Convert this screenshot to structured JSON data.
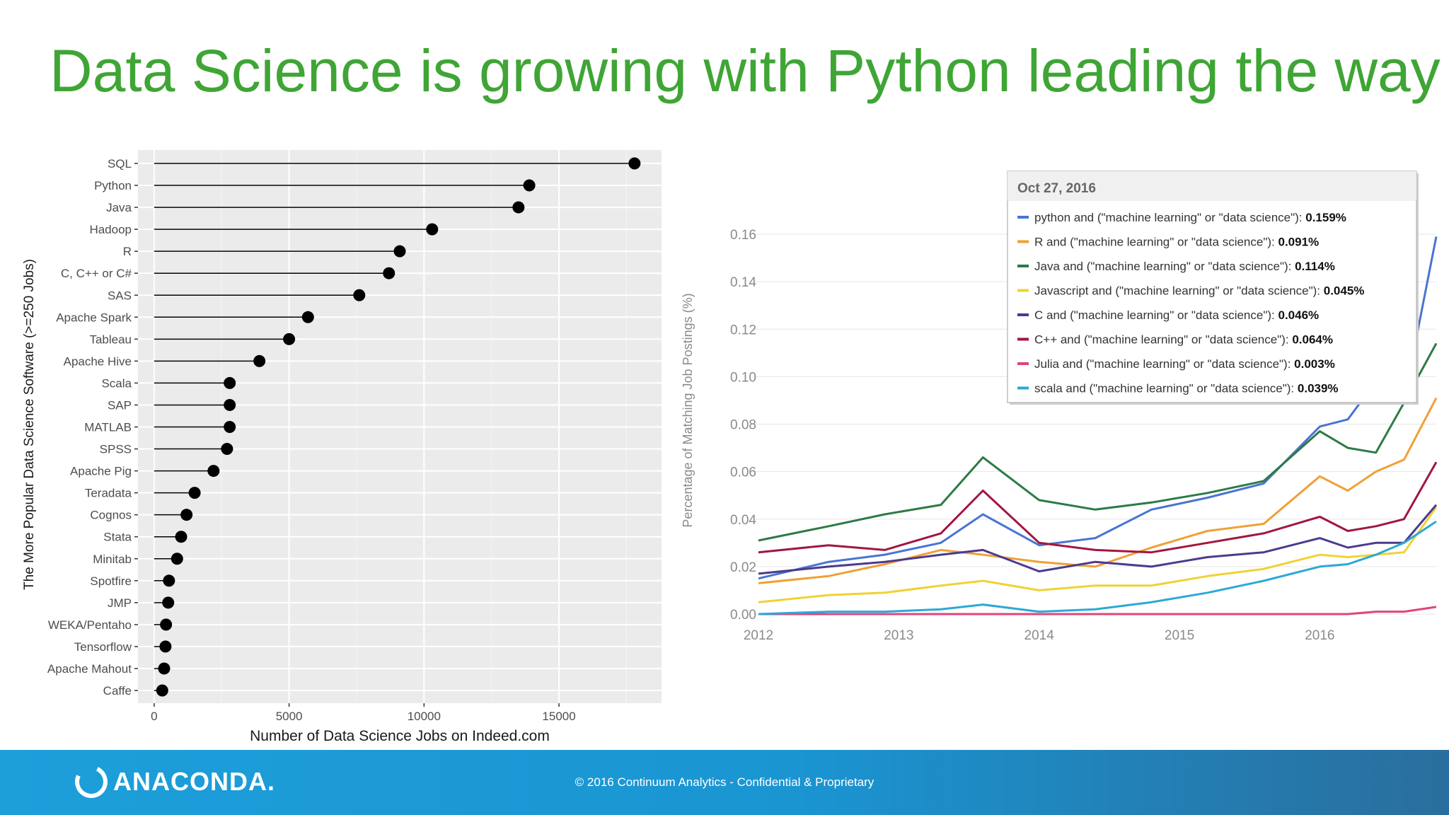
{
  "slide": {
    "title": "Data Science is growing with Python leading the way",
    "logo_text": "ANACONDA.",
    "copyright": "© 2016 Continuum Analytics - Confidential & Proprietary"
  },
  "colors": {
    "title": "#3fa535",
    "footer": "#1d9fda",
    "panel": "#ebebeb"
  },
  "chart_data": [
    {
      "type": "scatter",
      "style": "lollipop",
      "xlabel": "Number of Data Science Jobs on Indeed.com",
      "ylabel": "The More Popular Data Science Software (>=250 Jobs)",
      "xlim": [
        -600,
        18800
      ],
      "xticks": [
        0,
        5000,
        10000,
        15000
      ],
      "grid": true,
      "categories": [
        "SQL",
        "Python",
        "Java",
        "Hadoop",
        "R",
        "C, C++ or C#",
        "SAS",
        "Apache Spark",
        "Tableau",
        "Apache Hive",
        "Scala",
        "SAP",
        "MATLAB",
        "SPSS",
        "Apache Pig",
        "Teradata",
        "Cognos",
        "Stata",
        "Minitab",
        "Spotfire",
        "JMP",
        "WEKA/Pentaho",
        "Tensorflow",
        "Apache Mahout",
        "Caffe"
      ],
      "values": [
        17800,
        13900,
        13500,
        10300,
        9100,
        8700,
        7600,
        5700,
        5000,
        3900,
        2800,
        2800,
        2800,
        2700,
        2200,
        1500,
        1200,
        1000,
        850,
        550,
        520,
        440,
        420,
        370,
        300
      ]
    },
    {
      "type": "line",
      "ylabel": "Percentage of Matching Job Postings (%)",
      "x_ticks": [
        "2012",
        "2013",
        "2014",
        "2015",
        "2016"
      ],
      "y_ticks": [
        "0.00",
        "0.02",
        "0.04",
        "0.06",
        "0.08",
        "0.10",
        "0.12",
        "0.14",
        "0.16"
      ],
      "xlim": [
        2012,
        2016.83
      ],
      "ylim": [
        0,
        0.16
      ],
      "tooltip_date": "Oct 27, 2016",
      "series": [
        {
          "name": "python and (\"machine learning\" or \"data science\"):",
          "value_label": "0.159%",
          "color": "#4a74d2",
          "x": [
            2012,
            2012.5,
            2012.9,
            2013.3,
            2013.6,
            2014,
            2014.4,
            2014.8,
            2015.2,
            2015.6,
            2016,
            2016.2,
            2016.4,
            2016.6,
            2016.83
          ],
          "y": [
            0.015,
            0.022,
            0.025,
            0.03,
            0.042,
            0.029,
            0.032,
            0.044,
            0.049,
            0.055,
            0.079,
            0.082,
            0.098,
            0.09,
            0.159
          ]
        },
        {
          "name": "R and (\"machine learning\" or \"data science\"):",
          "value_label": "0.091%",
          "color": "#f0a035",
          "x": [
            2012,
            2012.5,
            2012.9,
            2013.3,
            2013.6,
            2014,
            2014.4,
            2014.8,
            2015.2,
            2015.6,
            2016,
            2016.2,
            2016.4,
            2016.6,
            2016.83
          ],
          "y": [
            0.013,
            0.016,
            0.021,
            0.027,
            0.025,
            0.022,
            0.02,
            0.028,
            0.035,
            0.038,
            0.058,
            0.052,
            0.06,
            0.065,
            0.091
          ]
        },
        {
          "name": "Java and (\"machine learning\" or \"data science\"):",
          "value_label": "0.114%",
          "color": "#2d7a46",
          "x": [
            2012,
            2012.5,
            2012.9,
            2013.3,
            2013.6,
            2014,
            2014.4,
            2014.8,
            2015.2,
            2015.6,
            2016,
            2016.2,
            2016.4,
            2016.6,
            2016.83
          ],
          "y": [
            0.031,
            0.037,
            0.042,
            0.046,
            0.066,
            0.048,
            0.044,
            0.047,
            0.051,
            0.056,
            0.077,
            0.07,
            0.068,
            0.089,
            0.114
          ]
        },
        {
          "name": "Javascript and (\"machine learning\" or \"data science\"):",
          "value_label": "0.045%",
          "color": "#f0d232",
          "x": [
            2012,
            2012.5,
            2012.9,
            2013.3,
            2013.6,
            2014,
            2014.4,
            2014.8,
            2015.2,
            2015.6,
            2016,
            2016.2,
            2016.4,
            2016.6,
            2016.83
          ],
          "y": [
            0.005,
            0.008,
            0.009,
            0.012,
            0.014,
            0.01,
            0.012,
            0.012,
            0.016,
            0.019,
            0.025,
            0.024,
            0.025,
            0.026,
            0.045
          ]
        },
        {
          "name": "C and (\"machine learning\" or \"data science\"):",
          "value_label": "0.046%",
          "color": "#4c3a8e",
          "x": [
            2012,
            2012.5,
            2012.9,
            2013.3,
            2013.6,
            2014,
            2014.4,
            2014.8,
            2015.2,
            2015.6,
            2016,
            2016.2,
            2016.4,
            2016.6,
            2016.83
          ],
          "y": [
            0.017,
            0.02,
            0.022,
            0.025,
            0.027,
            0.018,
            0.022,
            0.02,
            0.024,
            0.026,
            0.032,
            0.028,
            0.03,
            0.03,
            0.046
          ]
        },
        {
          "name": "C++ and (\"machine learning\" or \"data science\"):",
          "value_label": "0.064%",
          "color": "#a0173f",
          "x": [
            2012,
            2012.5,
            2012.9,
            2013.3,
            2013.6,
            2014,
            2014.4,
            2014.8,
            2015.2,
            2015.6,
            2016,
            2016.2,
            2016.4,
            2016.6,
            2016.83
          ],
          "y": [
            0.026,
            0.029,
            0.027,
            0.034,
            0.052,
            0.03,
            0.027,
            0.026,
            0.03,
            0.034,
            0.041,
            0.035,
            0.037,
            0.04,
            0.064
          ]
        },
        {
          "name": "Julia and (\"machine learning\" or \"data science\"):",
          "value_label": "0.003%",
          "color": "#e0457a",
          "x": [
            2012,
            2012.5,
            2012.9,
            2013.3,
            2013.6,
            2014,
            2014.4,
            2014.8,
            2015.2,
            2015.6,
            2016,
            2016.2,
            2016.4,
            2016.6,
            2016.83
          ],
          "y": [
            0,
            0,
            0,
            0,
            0,
            0,
            0,
            0,
            0,
            0,
            0,
            0,
            0.001,
            0.001,
            0.003
          ]
        },
        {
          "name": "scala and (\"machine learning\" or \"data science\"):",
          "value_label": "0.039%",
          "color": "#2ba9d8",
          "x": [
            2012,
            2012.5,
            2012.9,
            2013.3,
            2013.6,
            2014,
            2014.4,
            2014.8,
            2015.2,
            2015.6,
            2016,
            2016.2,
            2016.4,
            2016.6,
            2016.83
          ],
          "y": [
            0,
            0.001,
            0.001,
            0.002,
            0.004,
            0.001,
            0.002,
            0.005,
            0.009,
            0.014,
            0.02,
            0.021,
            0.025,
            0.03,
            0.039
          ]
        }
      ]
    }
  ]
}
